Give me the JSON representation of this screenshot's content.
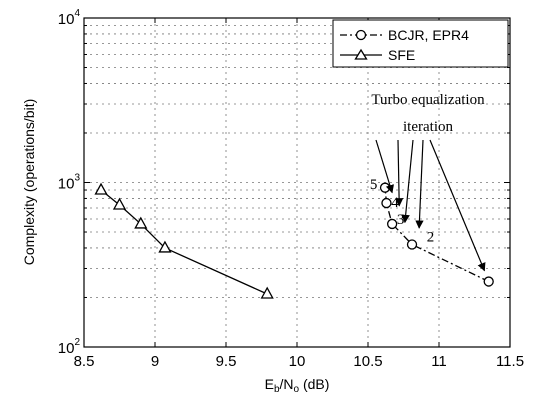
{
  "chart_data": {
    "type": "line",
    "ylabel": "Complexity (operations/bit)",
    "xlabel_main": "E",
    "xlabel_sub1": "b",
    "xlabel_mid": "/N",
    "xlabel_sub2": "o",
    "xlabel_unit": " (dB)",
    "xlim": [
      8.5,
      11.5
    ],
    "ylim": [
      100,
      10000
    ],
    "yscale": "log",
    "grid": true,
    "legend_position": "top-right",
    "x_ticks": [
      "8.5",
      "9",
      "9.5",
      "10",
      "10.5",
      "11",
      "11.5"
    ],
    "y_ticks": [
      {
        "base": "10",
        "exp": "2",
        "value": 100
      },
      {
        "base": "10",
        "exp": "3",
        "value": 1000
      },
      {
        "base": "10",
        "exp": "4",
        "value": 10000
      }
    ],
    "series": [
      {
        "name": "BCJR, EPR4",
        "marker": "circle",
        "line": "dashdot",
        "points": [
          {
            "x": 11.35,
            "y": 250
          },
          {
            "x": 10.81,
            "y": 420
          },
          {
            "x": 10.67,
            "y": 560
          },
          {
            "x": 10.63,
            "y": 750
          },
          {
            "x": 10.62,
            "y": 930
          }
        ]
      },
      {
        "name": "SFE",
        "marker": "triangle",
        "line": "solid",
        "points": [
          {
            "x": 8.62,
            "y": 900
          },
          {
            "x": 8.75,
            "y": 730
          },
          {
            "x": 8.9,
            "y": 560
          },
          {
            "x": 9.07,
            "y": 400
          },
          {
            "x": 9.79,
            "y": 210
          }
        ]
      }
    ],
    "annotation": {
      "line1": "Turbo equalization",
      "line2": "iteration",
      "labels": [
        {
          "text": "5",
          "x": 10.54,
          "y": 980
        },
        {
          "text": "4",
          "x": 10.69,
          "y": 760
        },
        {
          "text": "3",
          "x": 10.73,
          "y": 600
        },
        {
          "text": "2",
          "x": 10.94,
          "y": 470
        }
      ]
    }
  }
}
